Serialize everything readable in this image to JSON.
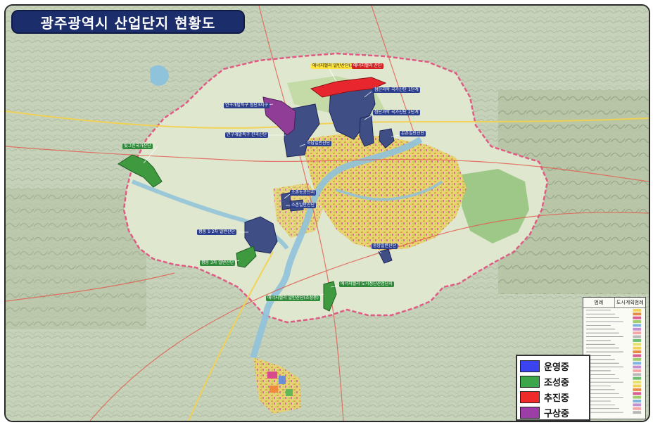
{
  "title": "광주광역시 산업단지 현황도",
  "legend": {
    "items": [
      {
        "label": "운영중",
        "color": "#3b43f0"
      },
      {
        "label": "조성중",
        "color": "#3da64a"
      },
      {
        "label": "추진중",
        "color": "#ef2a2a"
      },
      {
        "label": "구상중",
        "color": "#9b3fa6"
      }
    ]
  },
  "site_labels": [
    {
      "text": "빛그린국가산단",
      "style": "green"
    },
    {
      "text": "에너지밸리 일반산단(조성중)",
      "style": "yellow"
    },
    {
      "text": "에너지밸리 산단",
      "style": "red"
    },
    {
      "text": "첨단과학 국가산단 1단계",
      "style": "blue"
    },
    {
      "text": "첨단과학 국가산단 2단계",
      "style": "blue"
    },
    {
      "text": "본촌일반산단",
      "style": "blue"
    },
    {
      "text": "하남일반산단",
      "style": "blue"
    },
    {
      "text": "소촌농공단지",
      "style": "blue"
    },
    {
      "text": "소촌일반산단",
      "style": "blue"
    },
    {
      "text": "평동 1·2차 일반산단",
      "style": "blue"
    },
    {
      "text": "평동 3차 일반산단",
      "style": "green"
    },
    {
      "text": "송암일반산단",
      "style": "blue"
    },
    {
      "text": "에너지밸리 도시첨단산업단지",
      "style": "green"
    },
    {
      "text": "에너지밸리 일반산단(조성중)",
      "style": "green"
    },
    {
      "text": "연구개발특구 첨단3지구",
      "style": "blue"
    },
    {
      "text": "연구개발특구 진곡산단",
      "style": "blue"
    }
  ],
  "inset_legend": {
    "col1": "범례",
    "col2": "도시계획범례"
  }
}
